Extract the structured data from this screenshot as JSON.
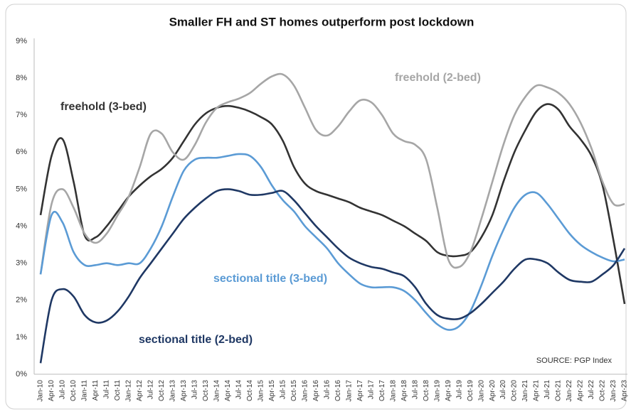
{
  "chart_data": {
    "type": "line",
    "title": "Smaller FH and ST homes outperform post lockdown",
    "annotation": "SOURCE: PGP Index",
    "categories": [
      "Jan-10",
      "Apr-10",
      "Jul-10",
      "Oct-10",
      "Jan-11",
      "Apr-11",
      "Jul-11",
      "Oct-11",
      "Jan-12",
      "Apr-12",
      "Jul-12",
      "Oct-12",
      "Jan-13",
      "Apr-13",
      "Jul-13",
      "Oct-13",
      "Jan-14",
      "Apr-14",
      "Jul-14",
      "Oct-14",
      "Jan-15",
      "Apr-15",
      "Jul-15",
      "Oct-15",
      "Jan-16",
      "Apr-16",
      "Jul-16",
      "Oct-16",
      "Jan-17",
      "Apr-17",
      "Jul-17",
      "Oct-17",
      "Jan-18",
      "Apr-18",
      "Jul-18",
      "Oct-18",
      "Jan-19",
      "Apr-19",
      "Jul-19",
      "Oct-19",
      "Jan-20",
      "Apr-20",
      "Jul-20",
      "Oct-20",
      "Jan-21",
      "Apr-21",
      "Jul-21",
      "Oct-21",
      "Jan-22",
      "Apr-22",
      "Jul-22",
      "Oct-22",
      "Jan-23",
      "Apr-23"
    ],
    "series": [
      {
        "name": "freehold (3-bed)",
        "color": "#333333",
        "values": [
          4.3,
          5.9,
          6.35,
          5.2,
          3.75,
          3.7,
          4.0,
          4.4,
          4.8,
          5.1,
          5.35,
          5.55,
          5.85,
          6.3,
          6.75,
          7.05,
          7.2,
          7.25,
          7.2,
          7.1,
          6.95,
          6.75,
          6.3,
          5.6,
          5.15,
          4.95,
          4.85,
          4.75,
          4.65,
          4.5,
          4.4,
          4.3,
          4.15,
          4.0,
          3.8,
          3.6,
          3.3,
          3.2,
          3.2,
          3.3,
          3.7,
          4.3,
          5.2,
          6.0,
          6.6,
          7.1,
          7.3,
          7.15,
          6.7,
          6.35,
          5.9,
          5.1,
          3.6,
          1.9
        ]
      },
      {
        "name": "freehold (2-bed)",
        "color": "#a6a6a6",
        "values": [
          2.7,
          4.6,
          5.0,
          4.5,
          3.8,
          3.55,
          3.8,
          4.3,
          4.8,
          5.6,
          6.5,
          6.5,
          6.0,
          5.8,
          6.2,
          6.8,
          7.2,
          7.35,
          7.45,
          7.6,
          7.85,
          8.05,
          8.1,
          7.8,
          7.2,
          6.6,
          6.45,
          6.7,
          7.1,
          7.4,
          7.35,
          7.0,
          6.5,
          6.3,
          6.2,
          5.8,
          4.5,
          3.1,
          2.9,
          3.3,
          4.2,
          5.2,
          6.2,
          7.0,
          7.5,
          7.8,
          7.75,
          7.6,
          7.3,
          6.8,
          6.1,
          5.2,
          4.6,
          4.6
        ]
      },
      {
        "name": "sectional title (3-bed)",
        "color": "#5b9bd5",
        "values": [
          2.7,
          4.3,
          4.1,
          3.3,
          2.95,
          2.95,
          3.0,
          2.95,
          3.0,
          3.0,
          3.4,
          4.0,
          4.8,
          5.5,
          5.8,
          5.85,
          5.85,
          5.9,
          5.95,
          5.9,
          5.6,
          5.1,
          4.7,
          4.4,
          4.0,
          3.7,
          3.4,
          3.0,
          2.7,
          2.45,
          2.35,
          2.35,
          2.35,
          2.25,
          2.0,
          1.65,
          1.35,
          1.2,
          1.3,
          1.7,
          2.4,
          3.2,
          3.9,
          4.5,
          4.85,
          4.9,
          4.6,
          4.2,
          3.8,
          3.5,
          3.3,
          3.15,
          3.05,
          3.1
        ]
      },
      {
        "name": "sectional title (2-bed)",
        "color": "#1f3864",
        "values": [
          0.3,
          2.0,
          2.3,
          2.1,
          1.6,
          1.4,
          1.45,
          1.7,
          2.1,
          2.6,
          3.0,
          3.4,
          3.8,
          4.2,
          4.5,
          4.75,
          4.95,
          5.0,
          4.95,
          4.85,
          4.85,
          4.9,
          4.95,
          4.7,
          4.35,
          4.0,
          3.7,
          3.4,
          3.15,
          3.0,
          2.9,
          2.85,
          2.75,
          2.65,
          2.35,
          1.9,
          1.6,
          1.5,
          1.5,
          1.65,
          1.9,
          2.2,
          2.5,
          2.85,
          3.1,
          3.1,
          3.0,
          2.75,
          2.55,
          2.5,
          2.5,
          2.7,
          2.95,
          3.4
        ]
      }
    ],
    "ylim": [
      0,
      9
    ],
    "yticks": [
      {
        "value": 0,
        "label": "0%"
      },
      {
        "value": 1,
        "label": "1%"
      },
      {
        "value": 2,
        "label": "2%"
      },
      {
        "value": 3,
        "label": "3%"
      },
      {
        "value": 4,
        "label": "4%"
      },
      {
        "value": 5,
        "label": "5%"
      },
      {
        "value": 6,
        "label": "6%"
      },
      {
        "value": 7,
        "label": "7%"
      },
      {
        "value": 8,
        "label": "8%"
      },
      {
        "value": 9,
        "label": "9%"
      }
    ],
    "grid": false
  }
}
